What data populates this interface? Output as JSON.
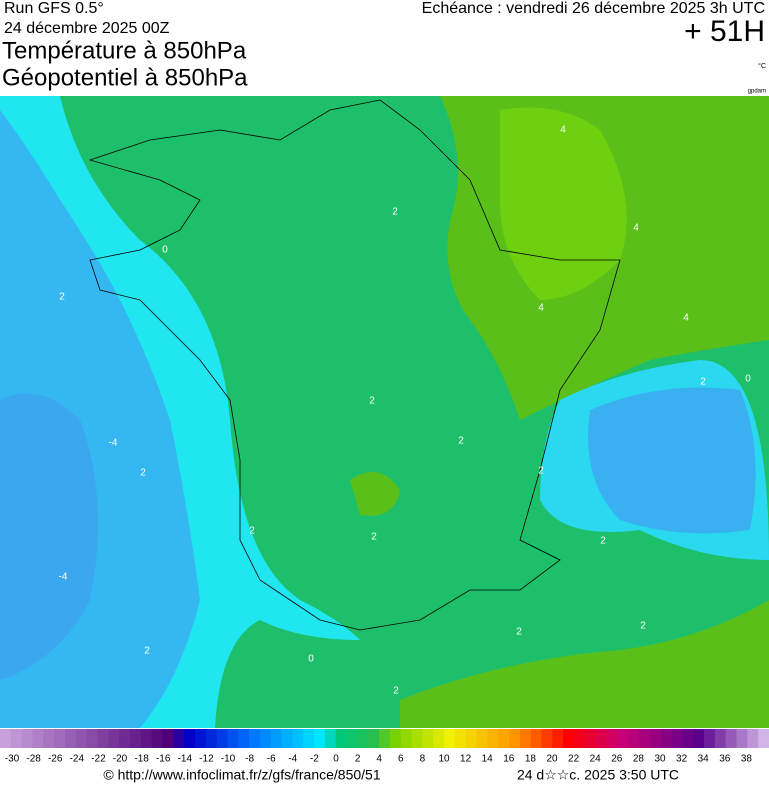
{
  "header": {
    "run": "Run GFS 0.5°",
    "run_date": "24 décembre 2025 00Z",
    "title_1": "Température à 850hPa",
    "title_2": "Géopotentiel à 850hPa",
    "forecast": "Echéance : vendredi 26 décembre 2025 3h UTC",
    "lead": "+ 51H",
    "unit": "°C",
    "unit_2": "gpdam"
  },
  "map": {
    "contour_labels": [
      4,
      4,
      4,
      2,
      0,
      2,
      -4,
      2,
      2,
      2,
      2,
      2,
      -4,
      2,
      2,
      0,
      2,
      2,
      2,
      0,
      2,
      2,
      4
    ]
  },
  "legend": {
    "labels": [
      -30,
      -28,
      -26,
      -24,
      -22,
      -20,
      -18,
      -16,
      -14,
      -12,
      -10,
      -8,
      -6,
      -4,
      -2,
      0,
      2,
      4,
      6,
      8,
      10,
      12,
      14,
      16,
      18,
      20,
      22,
      24,
      26,
      28,
      30,
      32,
      34,
      36,
      38
    ]
  },
  "footer": {
    "source": "© http://www.infoclimat.fr/z/gfs/france/850/51",
    "generated": "24 d☆☆c. 2025  3:50 UTC"
  }
}
